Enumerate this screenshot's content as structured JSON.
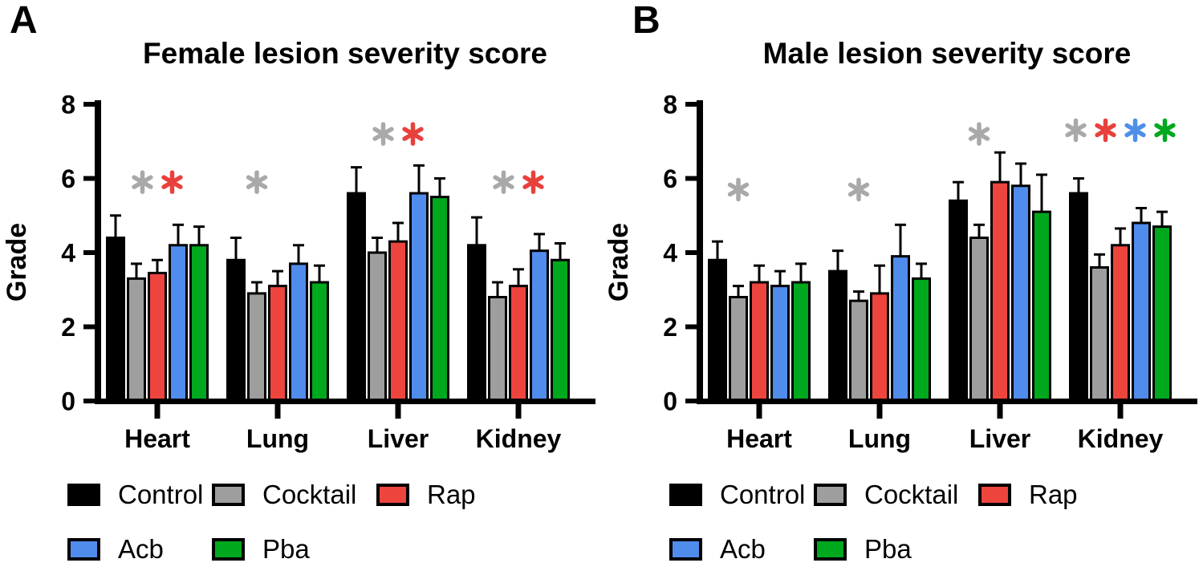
{
  "figure_background": "#FFFFFF",
  "asterisk_colors": {
    "Cocktail": "#A9A9A9",
    "Rap": "#E8413C",
    "Acb": "#4E8FE8",
    "Pba": "#00A81E"
  },
  "legend": {
    "rows": [
      [
        {
          "label": "Control",
          "color": "#000000"
        },
        {
          "label": "Cocktail",
          "color": "#9E9E9E"
        },
        {
          "label": "Rap",
          "color": "#EE443E"
        }
      ],
      [
        {
          "label": "Acb",
          "color": "#508CEB"
        },
        {
          "label": "Pba",
          "color": "#00A81E"
        }
      ]
    ]
  },
  "chart_data": [
    {
      "type": "bar",
      "panel_label": "A",
      "title": "Female lesion severity score",
      "xlabel": "",
      "ylabel": "Grade",
      "ylim": [
        0,
        8
      ],
      "yticks": [
        0,
        2,
        4,
        6,
        8
      ],
      "legend_position": "bottom",
      "grid": false,
      "error_bars": "upper SEM",
      "categories": [
        "Heart",
        "Lung",
        "Liver",
        "Kidney"
      ],
      "series": [
        {
          "name": "Control",
          "color": "#000000",
          "values": [
            4.4,
            3.8,
            5.6,
            4.2
          ],
          "errors_plus": [
            0.6,
            0.6,
            0.7,
            0.75
          ]
        },
        {
          "name": "Cocktail",
          "color": "#9E9E9E",
          "values": [
            3.3,
            2.9,
            4.0,
            2.8
          ],
          "errors_plus": [
            0.4,
            0.3,
            0.4,
            0.4
          ]
        },
        {
          "name": "Rap",
          "color": "#EE443E",
          "values": [
            3.45,
            3.1,
            4.3,
            3.1
          ],
          "errors_plus": [
            0.35,
            0.4,
            0.5,
            0.45
          ]
        },
        {
          "name": "Acb",
          "color": "#508CEB",
          "values": [
            4.2,
            3.7,
            5.6,
            4.05
          ],
          "errors_plus": [
            0.55,
            0.5,
            0.75,
            0.45
          ]
        },
        {
          "name": "Pba",
          "color": "#00A81E",
          "values": [
            4.2,
            3.2,
            5.5,
            3.8
          ],
          "errors_plus": [
            0.5,
            0.45,
            0.5,
            0.45
          ]
        }
      ],
      "significance": [
        {
          "category": "Heart",
          "series": [
            "Cocktail",
            "Rap"
          ],
          "y": 5.9
        },
        {
          "category": "Lung",
          "series": [
            "Cocktail"
          ],
          "y": 5.9
        },
        {
          "category": "Liver",
          "series": [
            "Cocktail",
            "Rap"
          ],
          "y": 7.2
        },
        {
          "category": "Kidney",
          "series": [
            "Cocktail",
            "Rap"
          ],
          "y": 5.9
        }
      ]
    },
    {
      "type": "bar",
      "panel_label": "B",
      "title": "Male lesion severity score",
      "xlabel": "",
      "ylabel": "Grade",
      "ylim": [
        0,
        8
      ],
      "yticks": [
        0,
        2,
        4,
        6,
        8
      ],
      "legend_position": "bottom",
      "grid": false,
      "error_bars": "upper SEM",
      "categories": [
        "Heart",
        "Lung",
        "Liver",
        "Kidney"
      ],
      "series": [
        {
          "name": "Control",
          "color": "#000000",
          "values": [
            3.8,
            3.5,
            5.4,
            5.6
          ],
          "errors_plus": [
            0.5,
            0.55,
            0.5,
            0.4
          ]
        },
        {
          "name": "Cocktail",
          "color": "#9E9E9E",
          "values": [
            2.8,
            2.7,
            4.4,
            3.6
          ],
          "errors_plus": [
            0.3,
            0.25,
            0.35,
            0.35
          ]
        },
        {
          "name": "Rap",
          "color": "#EE443E",
          "values": [
            3.2,
            2.9,
            5.9,
            4.2
          ],
          "errors_plus": [
            0.45,
            0.75,
            0.8,
            0.45
          ]
        },
        {
          "name": "Acb",
          "color": "#508CEB",
          "values": [
            3.1,
            3.9,
            5.8,
            4.8
          ],
          "errors_plus": [
            0.4,
            0.85,
            0.6,
            0.4
          ]
        },
        {
          "name": "Pba",
          "color": "#00A81E",
          "values": [
            3.2,
            3.3,
            5.1,
            4.7
          ],
          "errors_plus": [
            0.5,
            0.4,
            1.0,
            0.4
          ]
        }
      ],
      "significance": [
        {
          "category": "Heart",
          "series": [
            "Cocktail"
          ],
          "y": 5.7
        },
        {
          "category": "Lung",
          "series": [
            "Cocktail"
          ],
          "y": 5.7
        },
        {
          "category": "Liver",
          "series": [
            "Cocktail"
          ],
          "y": 7.2
        },
        {
          "category": "Kidney",
          "series": [
            "Cocktail",
            "Rap",
            "Acb",
            "Pba"
          ],
          "y": 7.3
        }
      ]
    }
  ]
}
